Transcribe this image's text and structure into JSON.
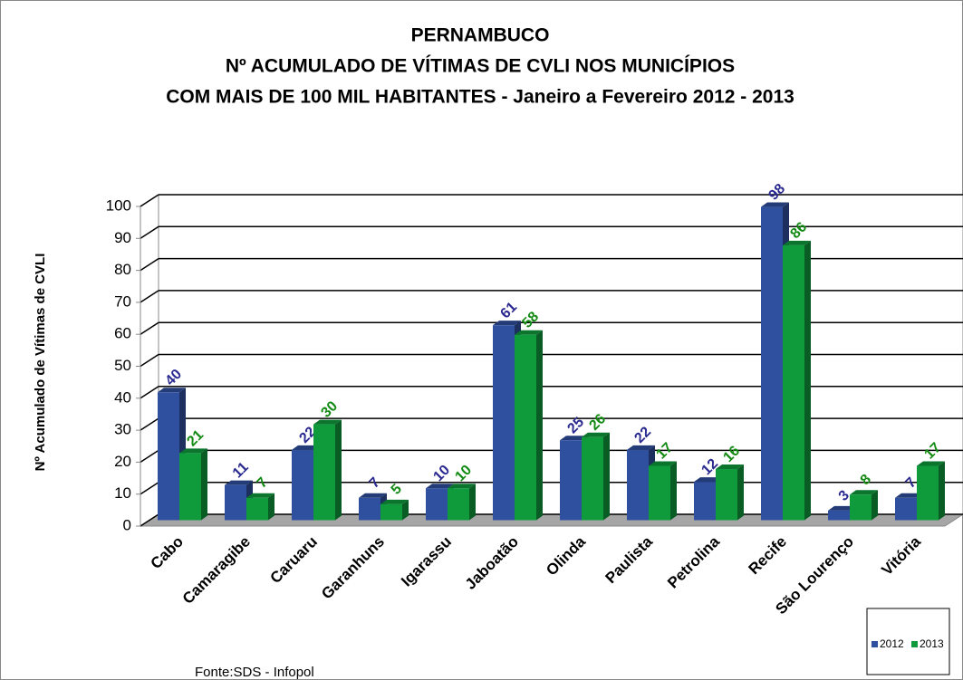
{
  "chart_data": {
    "type": "bar3d",
    "title": [
      "PERNAMBUCO",
      "Nº ACUMULADO DE VÍTIMAS DE CVLI NOS MUNICÍPIOS",
      "COM  MAIS DE 100 MIL HABITANTES - Janeiro a Fevereiro  2012 - 2013"
    ],
    "y_label": "Nº Acumulado de Vítimas de CVLI",
    "source": "Fonte:SDS - Infopol",
    "categories": [
      "Cabo",
      "Camaragibe",
      "Caruaru",
      "Garanhuns",
      "Igarassu",
      "Jaboatão",
      "Olinda",
      "Paulista",
      "Petrolina",
      "Recife",
      "São Lourenço",
      "Vitória"
    ],
    "series": [
      {
        "name": "2012",
        "color": "#2f4f9f",
        "label_color": "#2a2a90",
        "values": [
          40,
          11,
          22,
          7,
          10,
          61,
          25,
          22,
          12,
          98,
          3,
          7
        ]
      },
      {
        "name": "2013",
        "color": "#0f9a3c",
        "label_color": "#138a13",
        "values": [
          21,
          7,
          30,
          5,
          10,
          58,
          26,
          17,
          16,
          86,
          8,
          17
        ]
      }
    ],
    "ylim": [
      0,
      100
    ],
    "yticks": [
      0,
      10,
      20,
      30,
      40,
      50,
      60,
      70,
      80,
      90,
      100
    ],
    "grid": true,
    "legend": "bottom-right"
  }
}
